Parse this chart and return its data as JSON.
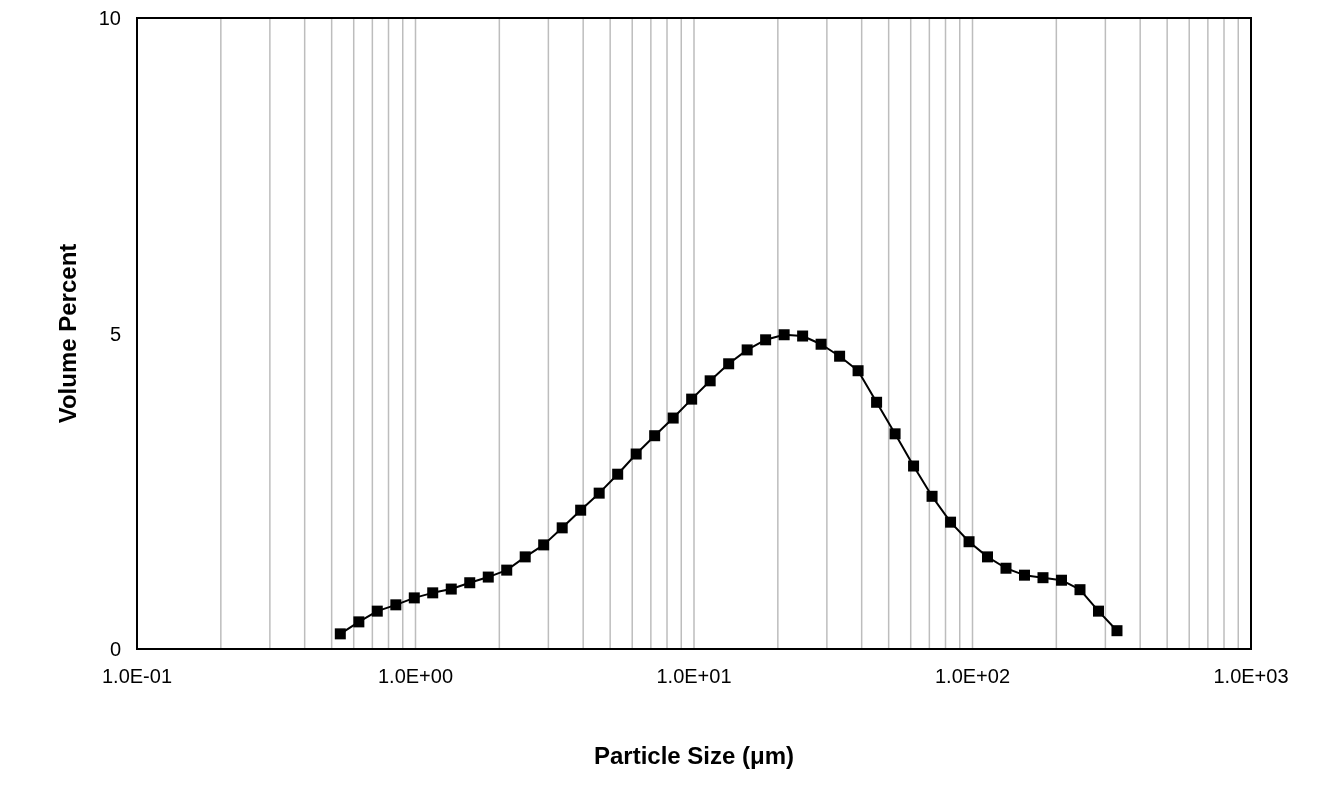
{
  "chart_data": {
    "type": "line",
    "xlabel": "Particle Size (μm)",
    "ylabel": "Volume Percent",
    "log": "x",
    "grid": "x",
    "marker": "square",
    "line_style": "solid",
    "xlim": [
      0.1,
      1000
    ],
    "ylim": [
      0,
      10
    ],
    "yticks": [
      0,
      5,
      10
    ],
    "xticks": [
      {
        "value": 0.1,
        "label": "1.0E-01"
      },
      {
        "value": 0.2,
        "label": null
      },
      {
        "value": 0.3,
        "label": null
      },
      {
        "value": 0.4,
        "label": null
      },
      {
        "value": 0.5,
        "label": null
      },
      {
        "value": 0.6,
        "label": null
      },
      {
        "value": 0.7,
        "label": null
      },
      {
        "value": 0.8,
        "label": null
      },
      {
        "value": 0.9,
        "label": null
      },
      {
        "value": 1,
        "label": "1.0E+00"
      },
      {
        "value": 2,
        "label": null
      },
      {
        "value": 3,
        "label": null
      },
      {
        "value": 4,
        "label": null
      },
      {
        "value": 5,
        "label": null
      },
      {
        "value": 6,
        "label": null
      },
      {
        "value": 7,
        "label": null
      },
      {
        "value": 8,
        "label": null
      },
      {
        "value": 9,
        "label": null
      },
      {
        "value": 10,
        "label": "1.0E+01"
      },
      {
        "value": 20,
        "label": null
      },
      {
        "value": 30,
        "label": null
      },
      {
        "value": 40,
        "label": null
      },
      {
        "value": 50,
        "label": null
      },
      {
        "value": 60,
        "label": null
      },
      {
        "value": 70,
        "label": null
      },
      {
        "value": 80,
        "label": null
      },
      {
        "value": 90,
        "label": null
      },
      {
        "value": 100,
        "label": "1.0E+02"
      },
      {
        "value": 200,
        "label": null
      },
      {
        "value": 300,
        "label": null
      },
      {
        "value": 400,
        "label": null
      },
      {
        "value": 500,
        "label": null
      },
      {
        "value": 600,
        "label": null
      },
      {
        "value": 700,
        "label": null
      },
      {
        "value": 800,
        "label": null
      },
      {
        "value": 900,
        "label": null
      },
      {
        "value": 1000,
        "label": "1.0E+03"
      }
    ],
    "x": [
      0.537,
      0.626,
      0.729,
      0.85,
      0.99,
      1.153,
      1.344,
      1.566,
      1.825,
      2.126,
      2.477,
      2.886,
      3.363,
      3.918,
      4.566,
      5.321,
      6.2,
      7.224,
      8.418,
      9.808,
      11.43,
      13.32,
      15.52,
      18.08,
      21.07,
      24.55,
      28.6,
      33.33,
      38.83,
      45.25,
      52.72,
      61.43,
      71.58,
      83.4,
      97.19,
      113.2,
      131.9,
      153.7,
      179.1,
      208.7,
      243.2,
      283.4,
      330.2
    ],
    "series": [
      {
        "color": "#000000",
        "values": [
          0.24,
          0.43,
          0.6,
          0.7,
          0.81,
          0.89,
          0.95,
          1.05,
          1.14,
          1.25,
          1.46,
          1.65,
          1.92,
          2.2,
          2.47,
          2.77,
          3.09,
          3.38,
          3.66,
          3.96,
          4.25,
          4.52,
          4.74,
          4.9,
          4.98,
          4.96,
          4.83,
          4.64,
          4.41,
          3.91,
          3.41,
          2.9,
          2.42,
          2.01,
          1.7,
          1.46,
          1.28,
          1.17,
          1.13,
          1.09,
          0.94,
          0.6,
          0.29
        ]
      }
    ]
  }
}
